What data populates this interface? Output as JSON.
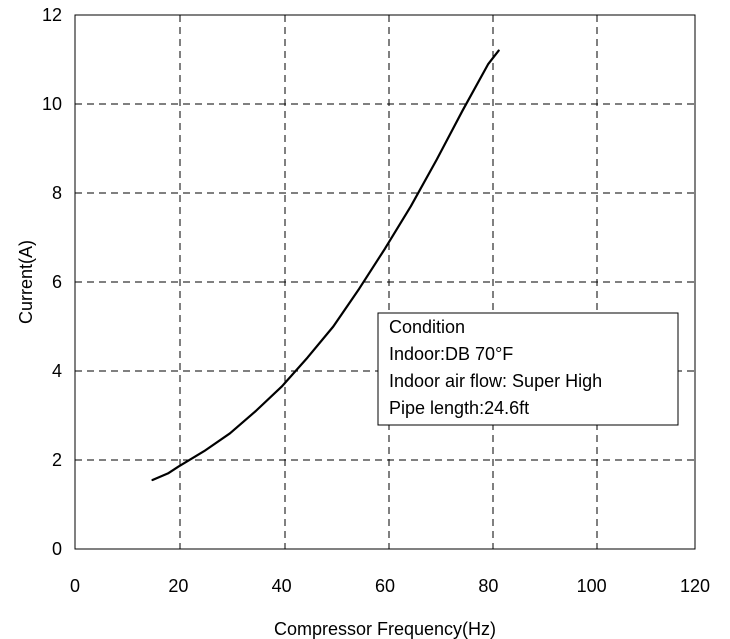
{
  "chart_data": {
    "type": "line",
    "xlabel": "Compressor Frequency(Hz)",
    "ylabel": "Current(A)",
    "xlim": [
      0,
      120
    ],
    "ylim": [
      0,
      12
    ],
    "x_ticks": [
      "0",
      "20",
      "40",
      "60",
      "80",
      "100",
      "120"
    ],
    "y_ticks": [
      "0",
      "2",
      "4",
      "6",
      "8",
      "10",
      "12"
    ],
    "grid": true,
    "grid_style": "dashed",
    "series": [
      {
        "color": "#000000",
        "x": [
          15,
          18,
          20,
          25,
          30,
          35,
          40,
          45,
          50,
          55,
          60,
          65,
          70,
          75,
          80,
          82
        ],
        "y": [
          1.55,
          1.7,
          1.85,
          2.2,
          2.6,
          3.1,
          3.65,
          4.3,
          5.0,
          5.85,
          6.75,
          7.7,
          8.75,
          9.85,
          10.9,
          11.2
        ]
      }
    ],
    "annotation": {
      "lines": [
        "Condition",
        "Indoor:DB 70°F",
        "Indoor air flow: Super High",
        "Pipe length:24.6ft"
      ]
    }
  }
}
